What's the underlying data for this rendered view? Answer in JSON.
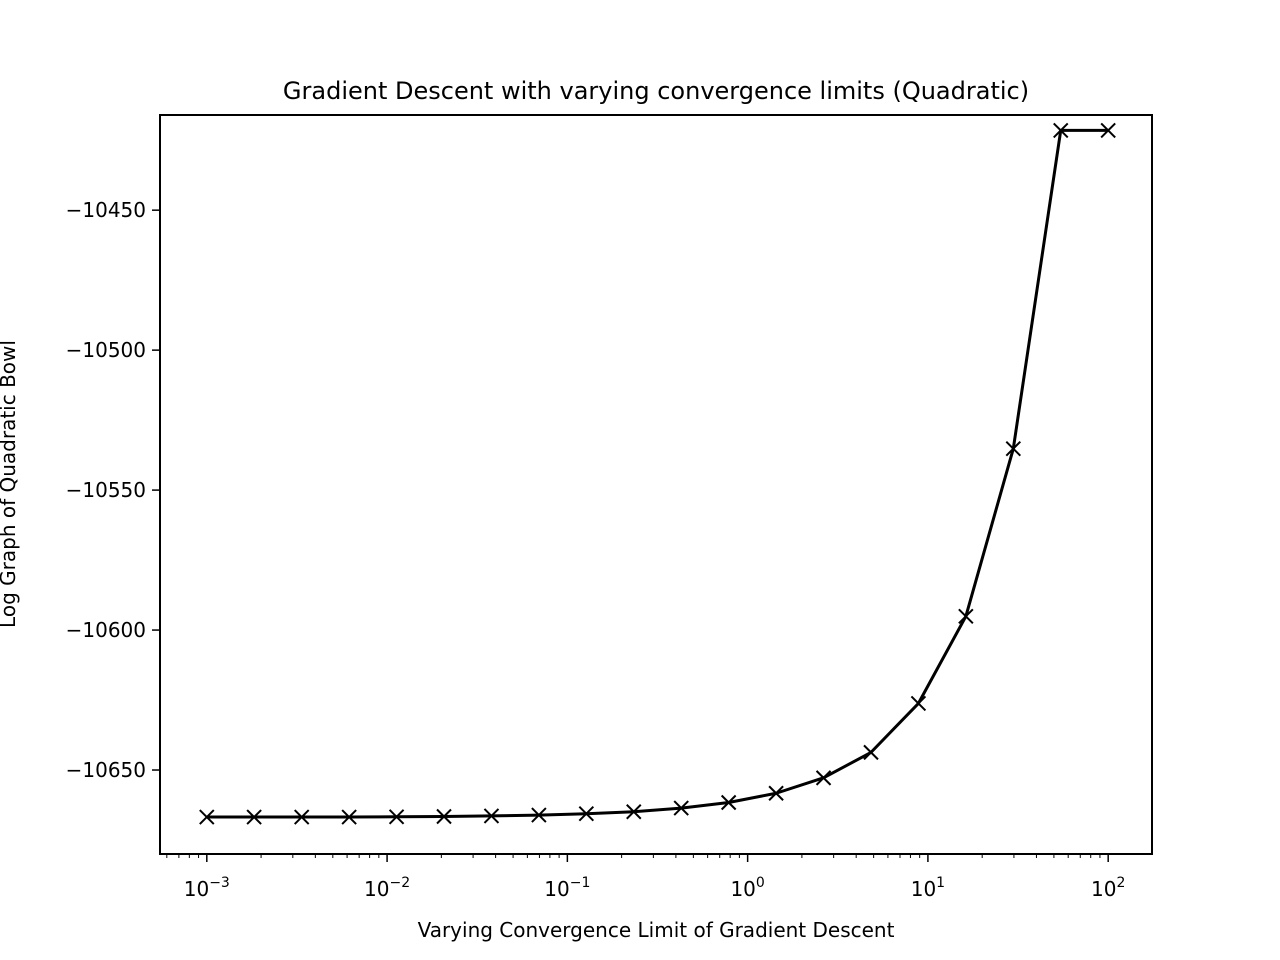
{
  "chart_data": {
    "type": "line",
    "title": "Gradient Descent with varying convergence limits (Quadratic)",
    "xlabel": "Varying Convergence Limit of Gradient Descent",
    "ylabel": "Log Graph of Quadratic Bowl",
    "xscale": "log",
    "xlim": [
      0.00055,
      175
    ],
    "ylim": [
      -10680,
      -10416
    ],
    "grid": false,
    "marker": "x",
    "line_color": "#000000",
    "x_ticks": [
      {
        "value": 0.001,
        "base": "10",
        "exp": "−3"
      },
      {
        "value": 0.01,
        "base": "10",
        "exp": "−2"
      },
      {
        "value": 0.1,
        "base": "10",
        "exp": "−1"
      },
      {
        "value": 1,
        "base": "10",
        "exp": "0"
      },
      {
        "value": 10,
        "base": "10",
        "exp": "1"
      },
      {
        "value": 100,
        "base": "10",
        "exp": "2"
      }
    ],
    "y_ticks": [
      {
        "value": -10450,
        "label": "−10450"
      },
      {
        "value": -10500,
        "label": "−10500"
      },
      {
        "value": -10550,
        "label": "−10550"
      },
      {
        "value": -10600,
        "label": "−10600"
      },
      {
        "value": -10650,
        "label": "−10650"
      }
    ],
    "series": [
      {
        "x": [
          0.001,
          0.00183,
          0.00336,
          0.00616,
          0.01129,
          0.02069,
          0.03793,
          0.06952,
          0.12743,
          0.23357,
          0.42813,
          0.78476,
          1.43845,
          2.63665,
          4.83293,
          8.85867,
          16.2378,
          29.7635,
          54.5559,
          100
        ],
        "y": [
          -10666.8,
          -10666.8,
          -10666.8,
          -10666.8,
          -10666.7,
          -10666.6,
          -10666.4,
          -10666.1,
          -10665.6,
          -10664.9,
          -10663.6,
          -10661.6,
          -10658.3,
          -10652.8,
          -10643.7,
          -10626.2,
          -10595.1,
          -10535.2,
          -10421.5,
          -10421.5
        ]
      }
    ]
  }
}
